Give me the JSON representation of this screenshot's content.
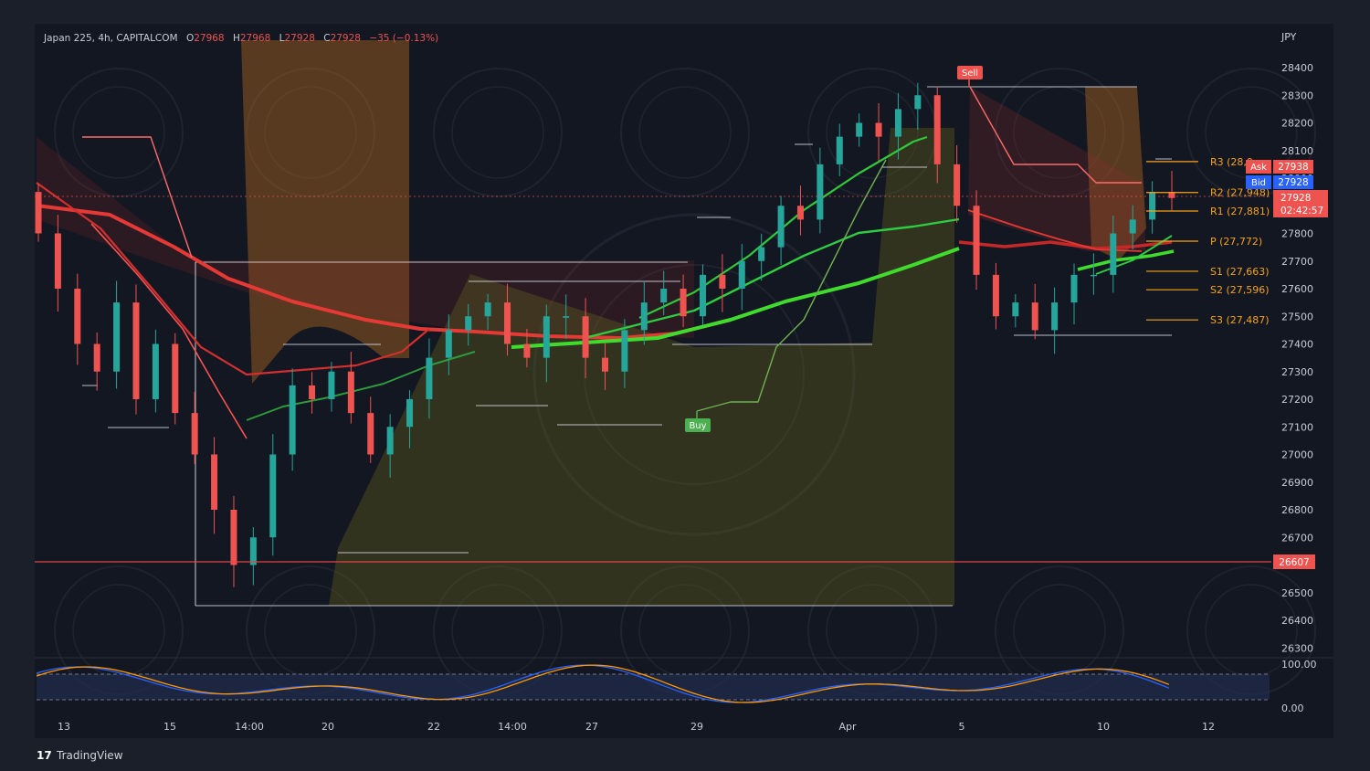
{
  "header": {
    "symbol": "Japan 225, 4h, CAPITALCOM",
    "o_label": "O",
    "o_value": "27968",
    "h_label": "H",
    "h_value": "27968",
    "l_label": "L",
    "l_value": "27928",
    "c_label": "C",
    "c_value": "27928",
    "change": "−35 (−0.13%)"
  },
  "currency": "JPY",
  "brand": "TradingView",
  "price_scale": [
    "28400",
    "28300",
    "28200",
    "28100",
    "28000",
    "27900",
    "27800",
    "27700",
    "27600",
    "27500",
    "27400",
    "27300",
    "27200",
    "27100",
    "27000",
    "26900",
    "26800",
    "26700",
    "26600",
    "26500",
    "26400",
    "26300"
  ],
  "time_labels": [
    "13",
    "15",
    "14:00",
    "20",
    "22",
    "14:00",
    "27",
    "29",
    "Apr",
    "5",
    "10",
    "12"
  ],
  "ask": {
    "label": "Ask",
    "value": "27938"
  },
  "bid": {
    "label": "Bid",
    "value": "27928"
  },
  "last": {
    "value": "27928",
    "countdown": "02:42:57"
  },
  "support_line": {
    "value": "26607"
  },
  "signals": {
    "buy": "Buy",
    "sell": "Sell"
  },
  "pivots": [
    {
      "label": "R3 (28,0",
      "value": 28060
    },
    {
      "label": "R2 (27,948)",
      "value": 27948
    },
    {
      "label": "R1 (27,881)",
      "value": 27881
    },
    {
      "label": "P (27,772)",
      "value": 27772
    },
    {
      "label": "S1 (27,663)",
      "value": 27663
    },
    {
      "label": "S2 (27,596)",
      "value": 27596
    },
    {
      "label": "S3 (27,487)",
      "value": 27487
    }
  ],
  "oscillator_scale": [
    "100.00",
    "0.00"
  ],
  "colors": {
    "background": "#131722",
    "up": "#26a69a",
    "down": "#ef5350",
    "ema_red": "#e0291f",
    "ema_green": "#3fdc2e",
    "pivot": "#f7a21b",
    "osc_blue": "#2962ff",
    "osc_orange": "#ff9800"
  },
  "chart_data": {
    "type": "candlestick",
    "title": "Japan 225, 4h, CAPITALCOM",
    "ylabel": "JPY",
    "ylim": [
      26250,
      28500
    ],
    "x_ticks": [
      "13",
      "15",
      "14:00",
      "20",
      "22",
      "14:00",
      "27",
      "29",
      "Apr",
      "5",
      "10",
      "12"
    ],
    "close_approx": [
      27800,
      27600,
      27400,
      27300,
      27550,
      27200,
      27400,
      27150,
      27000,
      26800,
      26600,
      26700,
      27000,
      27250,
      27200,
      27300,
      27150,
      27000,
      27100,
      27200,
      27350,
      27450,
      27500,
      27550,
      27400,
      27350,
      27500,
      27500,
      27350,
      27300,
      27450,
      27550,
      27600,
      27500,
      27650,
      27600,
      27700,
      27750,
      27900,
      27850,
      28050,
      28150,
      28200,
      28150,
      28250,
      28300,
      28050,
      27900,
      27650,
      27500,
      27550,
      27450,
      27550,
      27650,
      27650,
      27800,
      27850,
      27950,
      27928
    ],
    "ema_levels_last": [
      27770,
      27720,
      27700
    ],
    "pivot_levels": {
      "R3": 28060,
      "R2": 27948,
      "R1": 27881,
      "P": 27772,
      "S1": 27663,
      "S2": 27596,
      "S3": 27487
    },
    "horizontal_line": 26607,
    "legend": "none",
    "grid": false
  }
}
